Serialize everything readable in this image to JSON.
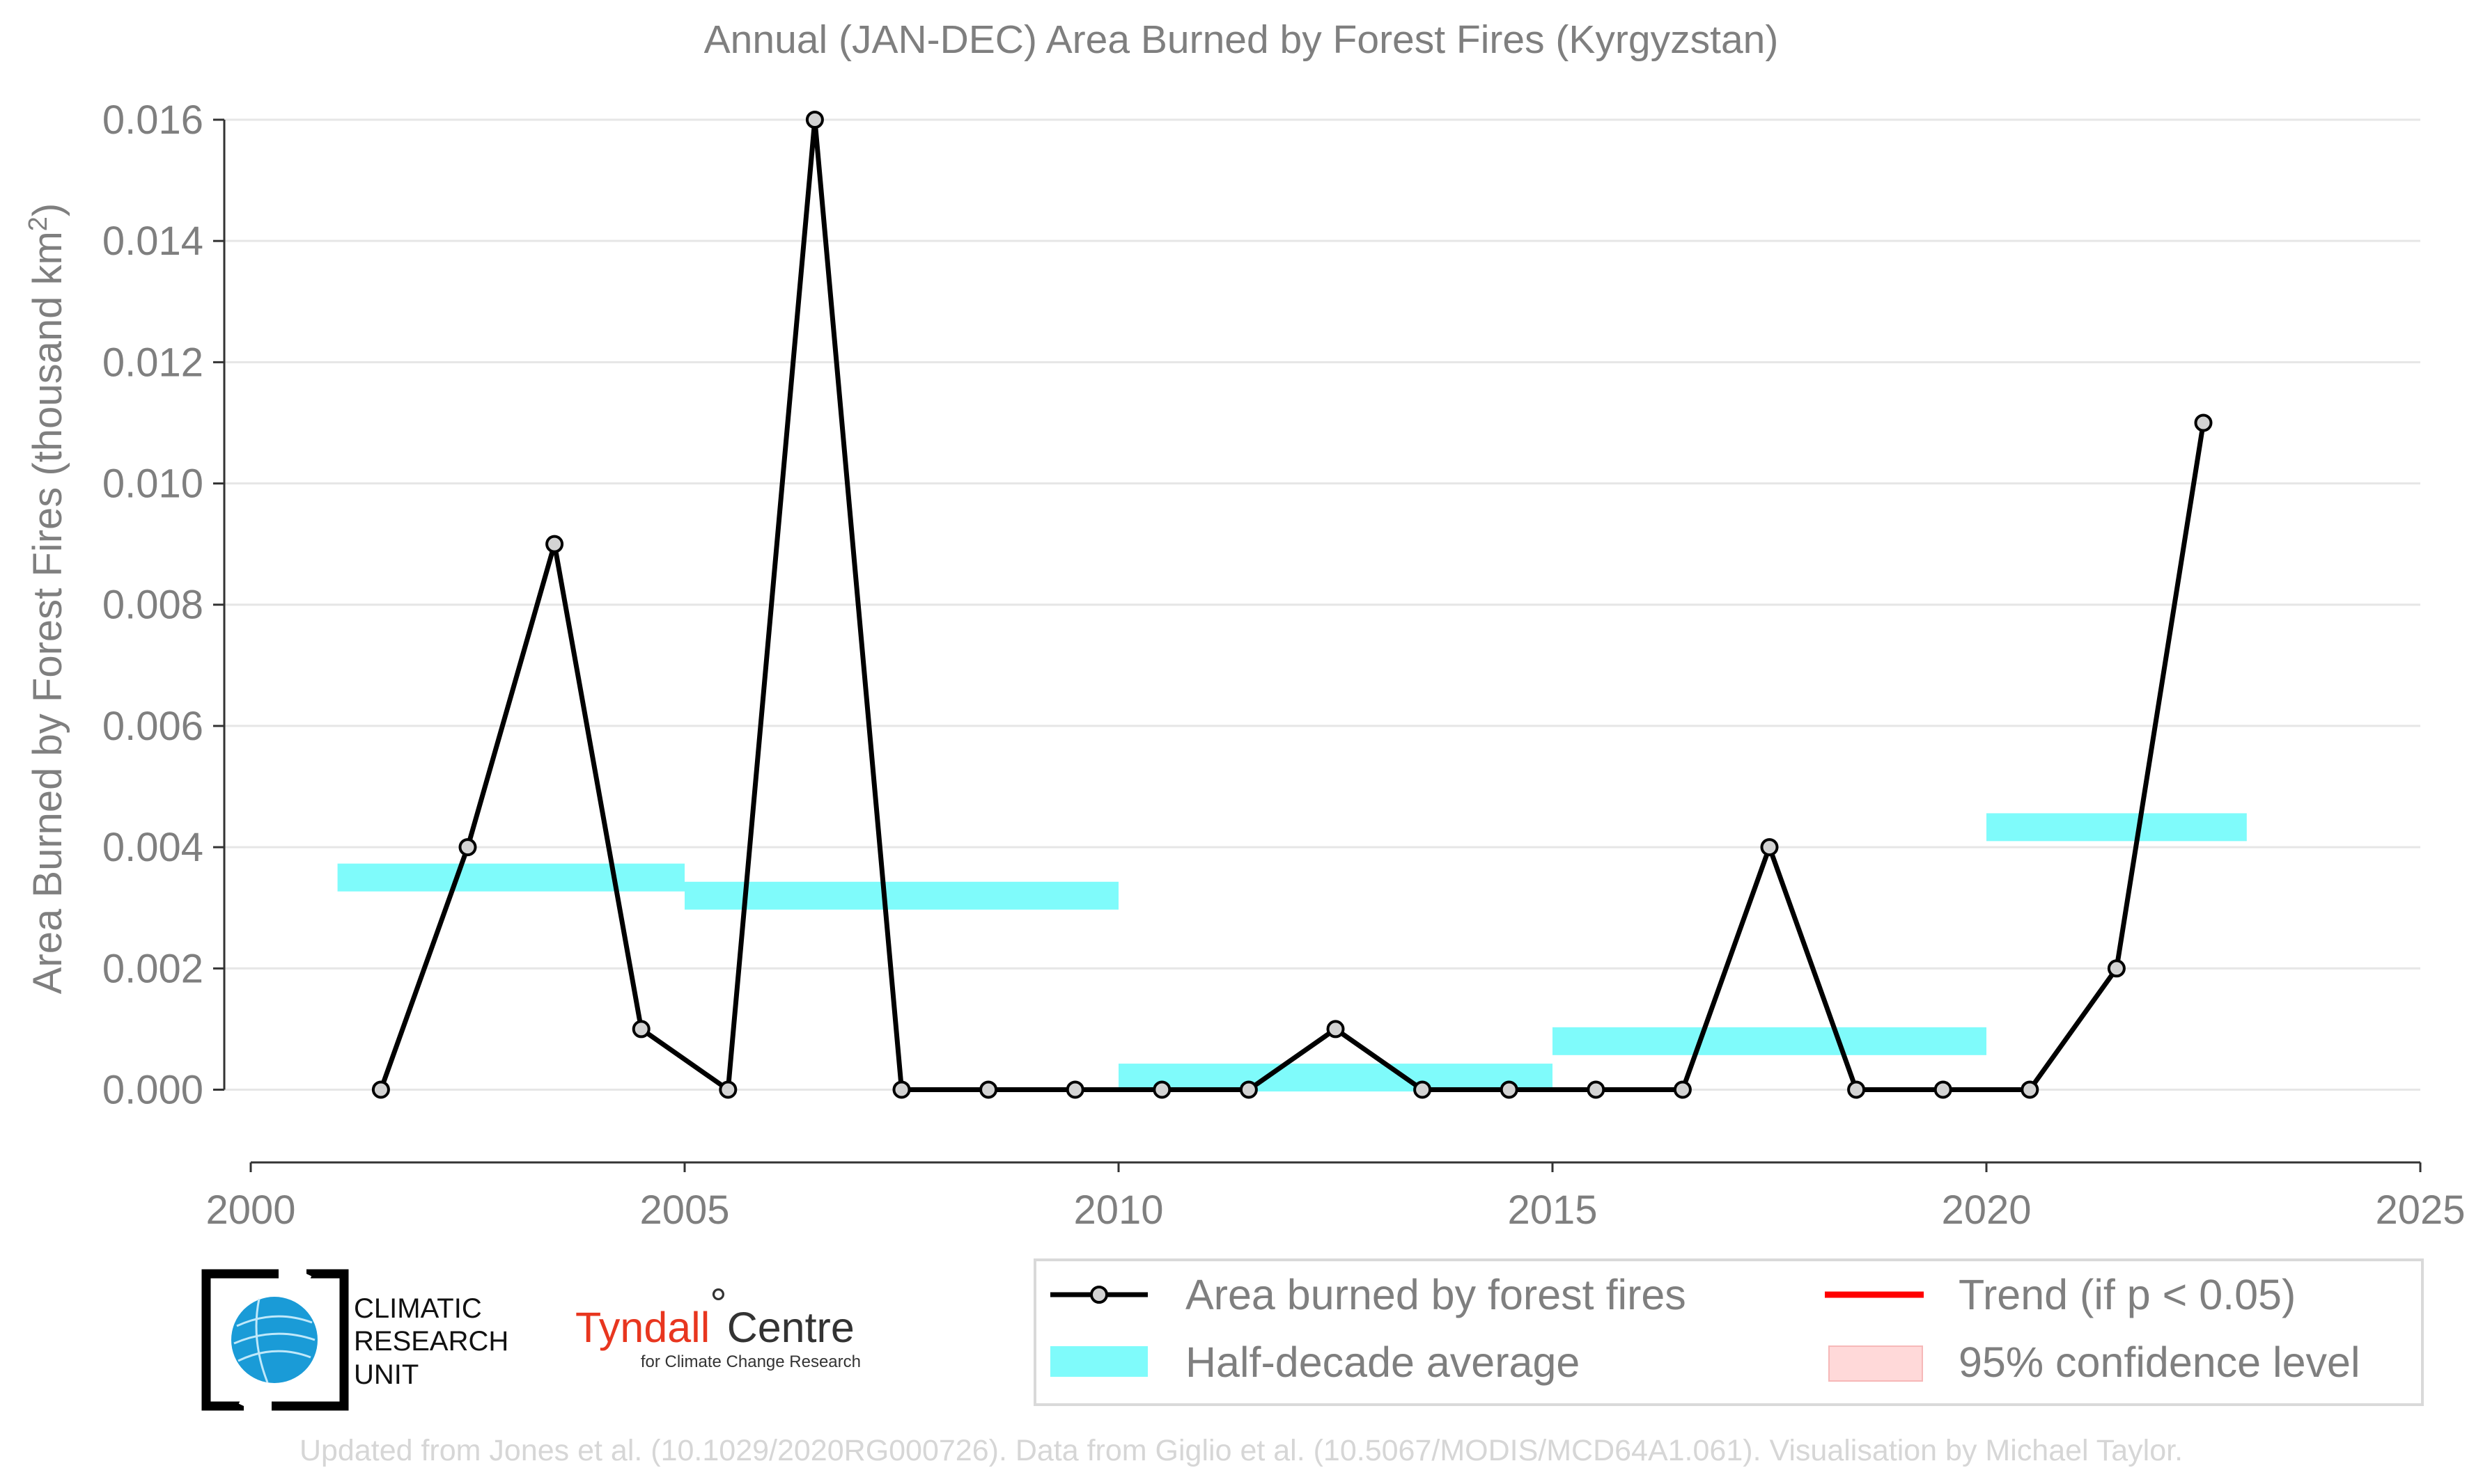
{
  "chart_data": {
    "type": "line",
    "title": "Annual (JAN-DEC) Area Burned by Forest Fires (Kyrgyzstan)",
    "ylabel": "Area Burned by Forest Fires (thousand km",
    "ylabel_sup": "2",
    "ylabel_end": ")",
    "xlim": [
      2000,
      2025
    ],
    "ylim": [
      -0.0012,
      0.016
    ],
    "x_ticks": [
      "2000",
      "2005",
      "2010",
      "2015",
      "2020",
      "2025"
    ],
    "y_ticks": [
      "0.000",
      "0.002",
      "0.004",
      "0.006",
      "0.008",
      "0.010",
      "0.012",
      "0.014",
      "0.016"
    ],
    "grid": "horizontal",
    "series": [
      {
        "name": "Area burned by forest fires",
        "color": "#000000",
        "x": [
          2001.5,
          2002.5,
          2003.5,
          2004.5,
          2005.5,
          2006.5,
          2007.5,
          2008.5,
          2009.5,
          2010.5,
          2011.5,
          2012.5,
          2013.5,
          2014.5,
          2015.5,
          2016.5,
          2017.5,
          2018.5,
          2019.5,
          2020.5,
          2021.5,
          2022.5
        ],
        "values": [
          0.0,
          0.004,
          0.009,
          0.001,
          0.0,
          0.016,
          0.0,
          0.0,
          0.0,
          0.0,
          0.0,
          0.001,
          0.0,
          0.0,
          0.0,
          0.0,
          0.004,
          0.0,
          0.0,
          0.0,
          0.002,
          0.011
        ]
      }
    ],
    "half_decade_average": {
      "name": "Half-decade average",
      "color": "#7ffbfb",
      "bands": [
        {
          "x0": 2001,
          "x1": 2005,
          "value": 0.0035
        },
        {
          "x0": 2005,
          "x1": 2010,
          "value": 0.0032
        },
        {
          "x0": 2010,
          "x1": 2015,
          "value": 0.0002
        },
        {
          "x0": 2015,
          "x1": 2020,
          "value": 0.0008
        },
        {
          "x0": 2020,
          "x1": 2023,
          "value": 0.00433
        }
      ]
    },
    "legend": {
      "placement": "bottom-right",
      "entries": [
        {
          "label": "Area burned by forest fires",
          "kind": "line-marker",
          "color": "#000000"
        },
        {
          "label": "Trend (if p < 0.05)",
          "kind": "line",
          "color": "#ff0000"
        },
        {
          "label": "Half-decade average",
          "kind": "band",
          "color": "#7ffbfb"
        },
        {
          "label": "95% confidence level",
          "kind": "band",
          "color": "#ffd9d9"
        }
      ]
    }
  },
  "logos": {
    "cru_line1": "CLIMATIC",
    "cru_line2": "RESEARCH",
    "cru_line3": "UNIT",
    "tyndall_main": "Tyndall",
    "tyndall_degree": "°",
    "tyndall_centre": "Centre",
    "tyndall_sub": "for Climate Change Research"
  },
  "credit": "Updated from Jones et al. (10.1029/2020RG000726). Data from Giglio et al. (10.5067/MODIS/MCD64A1.061). Visualisation by Michael Taylor."
}
